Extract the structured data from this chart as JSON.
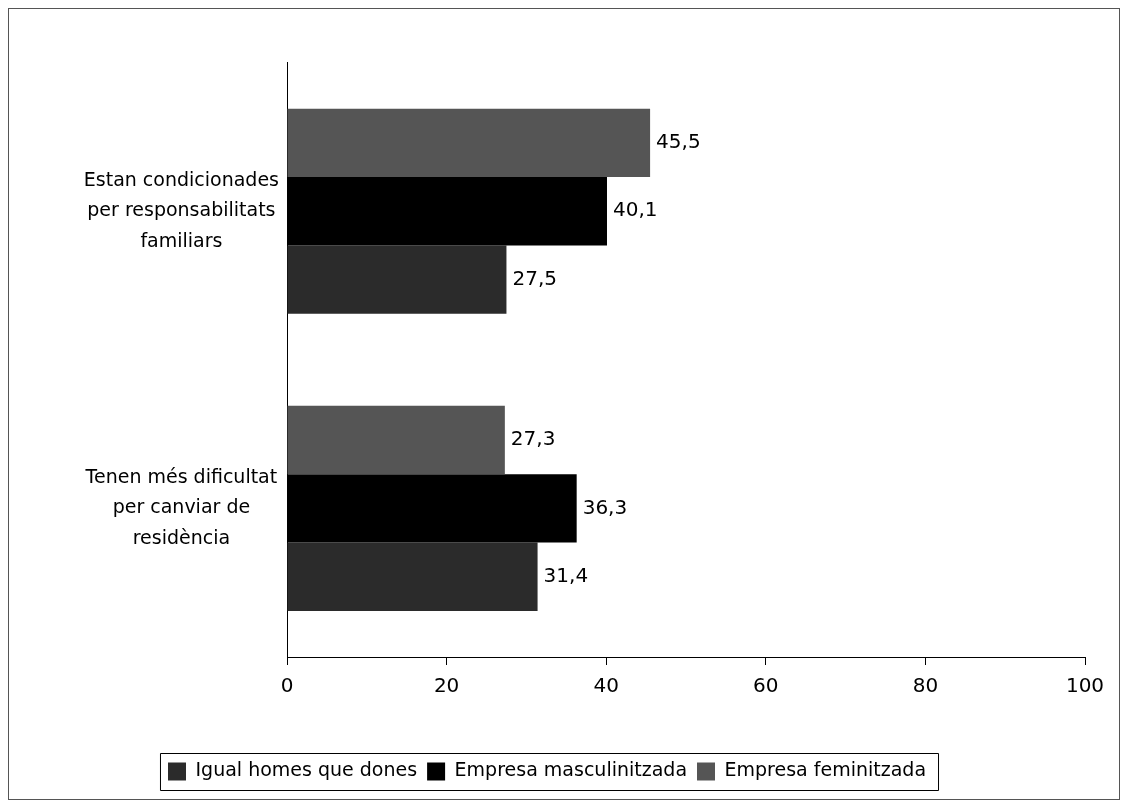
{
  "chart_data": {
    "type": "bar",
    "orientation": "horizontal",
    "categories": [
      "Estan condicionades per responsabilitats familiars",
      "Tenen més dificultat per canviar de residència"
    ],
    "series": [
      {
        "name": "Igual homes que dones",
        "color": "#2b2b2b",
        "values": [
          27.5,
          31.4
        ],
        "value_labels": [
          "27,5",
          "31,4"
        ]
      },
      {
        "name": "Empresa masculinitzada",
        "color": "#000000",
        "values": [
          40.1,
          36.3
        ],
        "value_labels": [
          "40,1",
          "36,3"
        ]
      },
      {
        "name": "Empresa feminitzada",
        "color": "#555555",
        "values": [
          45.5,
          27.3
        ],
        "value_labels": [
          "45,5",
          "27,3"
        ]
      }
    ],
    "xlim": [
      0,
      100
    ],
    "xticks": [
      0,
      20,
      40,
      60,
      80,
      100
    ],
    "grid": false,
    "legend": "bottom"
  }
}
